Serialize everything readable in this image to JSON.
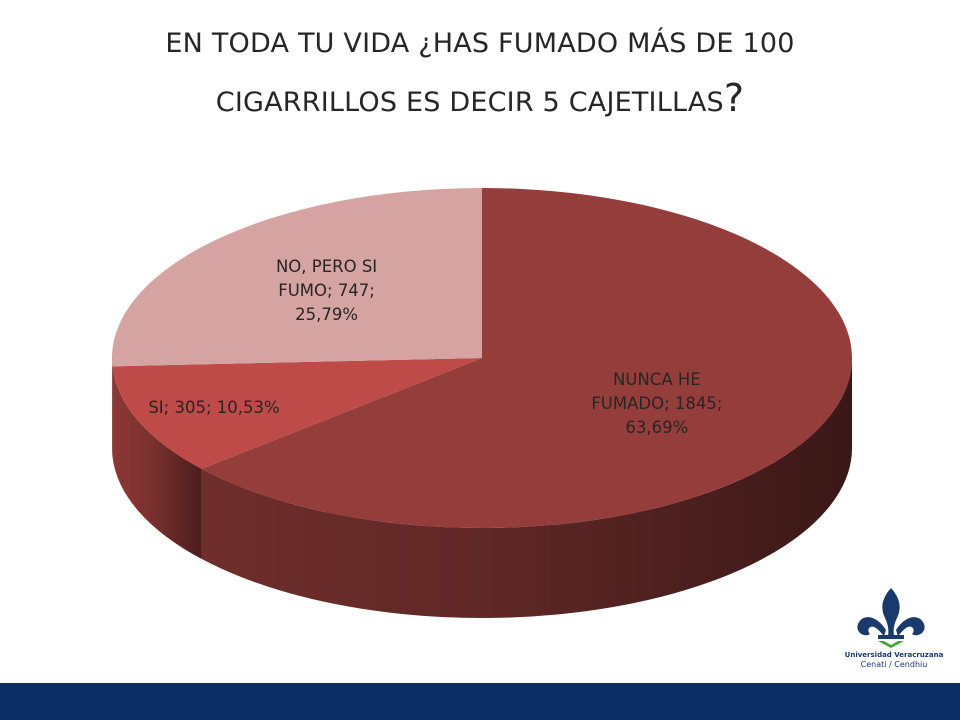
{
  "title": {
    "line1": "EN TODA TU VIDA ¿HAS FUMADO MÁS DE 100",
    "line2": "CIGARRILLOS ES DECIR 5 CAJETILLAS",
    "question_mark": "?"
  },
  "chart_data": {
    "type": "pie",
    "style": "3d",
    "slices": [
      {
        "category": "NUNCA HE FUMADO",
        "value": 1845,
        "percent": "63,69%",
        "color": "#953d3b",
        "label_lines": [
          "NUNCA HE",
          "FUMADO; 1845;",
          "63,69%"
        ]
      },
      {
        "category": "SI",
        "value": 305,
        "percent": "10,53%",
        "color": "#be4b48",
        "label_lines": [
          "SI; 305; 10,53%"
        ]
      },
      {
        "category": "NO, PERO SI FUMO",
        "value": 747,
        "percent": "25,79%",
        "color": "#d5a3a1",
        "label_lines": [
          "NO, PERO SI",
          "FUMO; 747;",
          "25,79%"
        ]
      }
    ],
    "legend": "none",
    "grid": false
  },
  "logo": {
    "line1": "Universidad Veracruzana",
    "line2": "Cenati / Cendhiu",
    "colors": {
      "navy": "#1a3a6e",
      "green": "#3fa535"
    }
  },
  "footer": {
    "color": "#0b2c64"
  }
}
